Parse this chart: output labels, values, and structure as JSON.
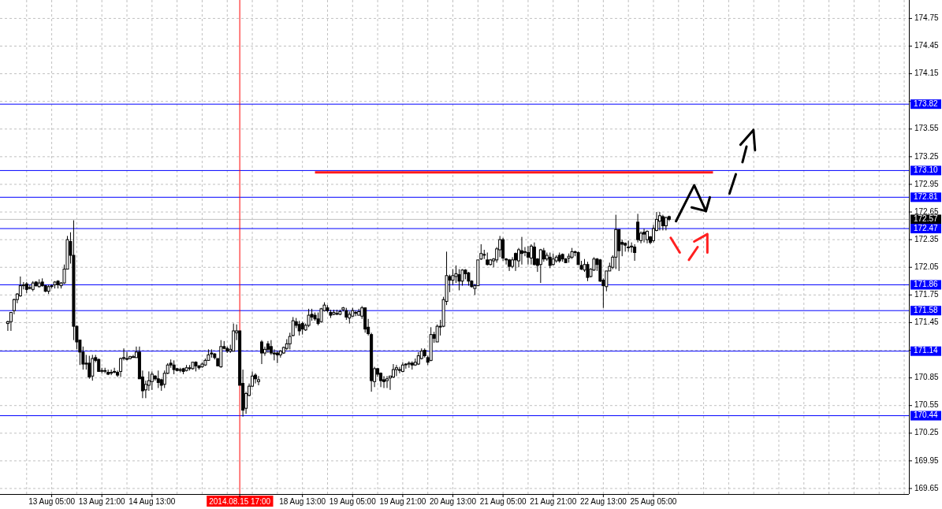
{
  "chart_data": {
    "type": "candlestick",
    "categories": [
      null,
      null,
      null,
      null,
      null,
      null,
      null,
      null,
      null,
      null,
      null,
      null,
      null,
      null,
      null,
      null,
      "13 Aug 05:00",
      null,
      null,
      null,
      null,
      null,
      null,
      null,
      null,
      null,
      null,
      null,
      null,
      null,
      null,
      null,
      "13 Aug 21:00",
      null,
      null,
      null,
      null,
      null,
      null,
      null,
      null,
      null,
      null,
      null,
      null,
      null,
      null,
      null,
      "14 Aug 13:00",
      null,
      null,
      null,
      null,
      null,
      null,
      null,
      null,
      null,
      null,
      null,
      null,
      null,
      null,
      null,
      null,
      null,
      null,
      null,
      null,
      null,
      null,
      null,
      null,
      null,
      null,
      null,
      "2014.08.15 17:00",
      null,
      null,
      null,
      null,
      null,
      null,
      null,
      null,
      null,
      null,
      null,
      null,
      null,
      null,
      null,
      null,
      null,
      null,
      null,
      "18 Aug 13:00",
      null,
      null,
      null,
      null,
      null,
      null,
      null,
      null,
      null,
      null,
      null,
      null,
      null,
      null,
      null,
      "19 Aug 05:00",
      null,
      null,
      null,
      null,
      null,
      null,
      null,
      null,
      null,
      null,
      null,
      null,
      null,
      null,
      null,
      "19 Aug 21:00",
      null,
      null,
      null,
      null,
      null,
      null,
      null,
      null,
      null,
      null,
      null,
      null,
      null,
      null,
      null,
      "20 Aug 13:00",
      null,
      null,
      null,
      null,
      null,
      null,
      null,
      null,
      null,
      null,
      null,
      null,
      null,
      null,
      null,
      "21 Aug 05:00",
      null,
      null,
      null,
      null,
      null,
      null,
      null,
      null,
      null,
      null,
      null,
      null,
      null,
      null,
      null,
      "21 Aug 21:00",
      null,
      null,
      null,
      null,
      null,
      null,
      null,
      null,
      null,
      null,
      null,
      null,
      null,
      null,
      null,
      "22 Aug 13:00",
      null,
      null,
      null,
      null,
      null,
      null,
      null,
      null,
      null,
      null,
      null,
      null,
      null,
      null,
      null,
      "25 Aug 05:00",
      null,
      null,
      null,
      null,
      null,
      null,
      null,
      null,
      null,
      null,
      null,
      null,
      null,
      null,
      null,
      null,
      null,
      null,
      null,
      null,
      null,
      null,
      null,
      null,
      null,
      null,
      null,
      null,
      null,
      null,
      null,
      null,
      null,
      null,
      null,
      null,
      null,
      null,
      null,
      null,
      null,
      null,
      null,
      null,
      null,
      null,
      null,
      null,
      null,
      null,
      null,
      null,
      null,
      null,
      null,
      null,
      null,
      null,
      null,
      null,
      null,
      null,
      null,
      null,
      null,
      null,
      null,
      null,
      null,
      null,
      null,
      null,
      null,
      null,
      null,
      null,
      null,
      null,
      null,
      null,
      null
    ],
    "ohlc": [
      null,
      null,
      [
        171.44,
        171.47,
        171.36,
        171.46
      ],
      [
        171.46,
        171.56,
        171.36,
        171.56
      ],
      [
        171.58,
        171.71,
        171.54,
        171.7
      ],
      [
        171.7,
        171.77,
        171.66,
        171.76
      ],
      [
        171.74,
        171.95,
        171.73,
        171.85
      ],
      [
        171.85,
        171.89,
        171.81,
        171.86
      ],
      [
        171.87,
        171.89,
        171.77,
        171.81
      ],
      [
        171.83,
        171.86,
        171.81,
        171.83
      ],
      [
        171.81,
        171.9,
        171.79,
        171.88
      ],
      [
        171.89,
        171.9,
        171.84,
        171.85
      ],
      [
        171.84,
        171.92,
        171.83,
        171.88
      ],
      [
        171.89,
        171.93,
        171.84,
        171.85
      ],
      [
        171.85,
        171.86,
        171.78,
        171.79
      ],
      [
        171.79,
        171.86,
        171.76,
        171.84
      ],
      [
        171.85,
        171.86,
        171.82,
        171.85
      ],
      [
        171.86,
        171.9,
        171.82,
        171.89
      ],
      [
        171.9,
        171.91,
        171.82,
        171.86
      ],
      [
        171.85,
        171.89,
        171.82,
        171.88
      ],
      [
        171.88,
        172.08,
        171.87,
        172.03
      ],
      [
        172.03,
        172.39,
        172.03,
        172.35
      ],
      [
        172.33,
        172.43,
        172.09,
        172.18
      ],
      [
        172.18,
        172.56,
        171.26,
        171.41
      ],
      [
        171.41,
        171.42,
        171.16,
        171.24
      ],
      [
        171.26,
        171.26,
        170.99,
        171.13
      ],
      [
        171.13,
        171.19,
        170.94,
        171.0
      ],
      [
        171.01,
        171.1,
        170.94,
        171.0
      ],
      [
        171.01,
        171.09,
        170.84,
        170.86
      ],
      [
        170.87,
        171.1,
        170.82,
        171.06
      ],
      [
        171.07,
        171.1,
        171.02,
        171.04
      ],
      [
        171.05,
        171.06,
        170.92,
        170.92
      ],
      [
        170.93,
        170.96,
        170.9,
        170.93
      ],
      [
        170.93,
        170.96,
        170.9,
        170.93
      ],
      [
        170.91,
        170.94,
        170.88,
        170.89
      ],
      [
        170.91,
        170.94,
        170.88,
        170.91
      ],
      [
        170.92,
        170.96,
        170.9,
        170.92
      ],
      [
        170.91,
        170.93,
        170.86,
        170.88
      ],
      [
        170.92,
        171.07,
        170.86,
        171.06
      ],
      [
        171.07,
        171.17,
        171.04,
        171.07
      ],
      [
        171.06,
        171.13,
        171.04,
        171.06
      ],
      [
        171.06,
        171.09,
        171.05,
        171.08
      ],
      [
        171.08,
        171.1,
        171.07,
        171.08
      ],
      [
        171.07,
        171.19,
        171.07,
        171.13
      ],
      [
        171.13,
        171.19,
        170.84,
        170.84
      ],
      [
        170.86,
        170.93,
        170.63,
        170.71
      ],
      [
        170.72,
        170.82,
        170.63,
        170.78
      ],
      [
        170.77,
        170.92,
        170.71,
        170.82
      ],
      [
        170.81,
        170.92,
        170.72,
        170.89
      ],
      [
        170.87,
        170.88,
        170.82,
        170.84
      ],
      [
        170.84,
        170.93,
        170.74,
        170.8
      ],
      [
        170.83,
        170.84,
        170.71,
        170.77
      ],
      [
        170.78,
        170.93,
        170.74,
        170.9
      ],
      [
        170.9,
        171.01,
        170.89,
        170.99
      ],
      [
        171.01,
        171.05,
        170.96,
        170.99
      ],
      [
        170.99,
        171.04,
        170.89,
        170.94
      ],
      [
        170.95,
        170.96,
        170.92,
        170.93
      ],
      [
        170.94,
        170.96,
        170.91,
        170.94
      ],
      [
        170.95,
        170.96,
        170.89,
        170.92
      ],
      [
        170.93,
        170.99,
        170.92,
        170.96
      ],
      [
        170.96,
        170.99,
        170.93,
        170.96
      ],
      [
        170.95,
        171.02,
        170.94,
        171.02
      ],
      [
        171.02,
        171.03,
        170.92,
        170.98
      ],
      [
        170.98,
        170.99,
        170.94,
        170.96
      ],
      [
        170.97,
        171.02,
        170.96,
        171.0
      ],
      [
        170.99,
        171.06,
        170.98,
        171.04
      ],
      [
        171.04,
        171.16,
        171.04,
        171.1
      ],
      [
        171.12,
        171.16,
        171.07,
        171.11
      ],
      [
        171.11,
        171.12,
        171.05,
        171.07
      ],
      [
        171.06,
        171.06,
        170.98,
        170.98
      ],
      [
        170.97,
        171.26,
        170.96,
        171.19
      ],
      [
        171.19,
        171.25,
        171.16,
        171.17
      ],
      [
        171.17,
        171.19,
        171.12,
        171.14
      ],
      [
        171.14,
        171.21,
        171.12,
        171.16
      ],
      [
        171.14,
        171.44,
        171.14,
        171.36
      ],
      [
        171.34,
        171.43,
        171.26,
        171.36
      ],
      [
        171.36,
        171.36,
        170.77,
        170.77
      ],
      [
        170.79,
        170.94,
        170.43,
        170.5
      ],
      [
        170.52,
        170.7,
        170.46,
        170.68
      ],
      [
        170.66,
        170.79,
        170.65,
        170.76
      ],
      [
        170.76,
        170.92,
        170.75,
        170.87
      ],
      [
        170.88,
        170.9,
        170.79,
        170.84
      ],
      [
        170.81,
        170.87,
        170.77,
        170.83
      ],
      [
        171.24,
        171.26,
        171.0,
        171.12
      ],
      [
        171.12,
        171.19,
        171.09,
        171.16
      ],
      [
        171.22,
        171.25,
        171.12,
        171.16
      ],
      [
        171.19,
        171.26,
        171.1,
        171.12
      ],
      [
        171.12,
        171.16,
        171.04,
        171.11
      ],
      [
        171.12,
        171.14,
        171.01,
        171.1
      ],
      [
        171.1,
        171.15,
        171.07,
        171.14
      ],
      [
        171.12,
        171.19,
        171.11,
        171.18
      ],
      [
        171.17,
        171.27,
        171.15,
        171.22
      ],
      [
        171.22,
        171.34,
        171.16,
        171.3
      ],
      [
        171.31,
        171.51,
        171.3,
        171.47
      ],
      [
        171.46,
        171.5,
        171.39,
        171.42
      ],
      [
        171.43,
        171.47,
        171.31,
        171.36
      ],
      [
        171.44,
        171.46,
        171.32,
        171.38
      ],
      [
        171.37,
        171.44,
        171.36,
        171.42
      ],
      [
        171.42,
        171.6,
        171.4,
        171.53
      ],
      [
        171.54,
        171.6,
        171.47,
        171.51
      ],
      [
        171.53,
        171.56,
        171.47,
        171.49
      ],
      [
        171.49,
        171.56,
        171.42,
        171.44
      ],
      [
        171.46,
        171.61,
        171.45,
        171.6
      ],
      [
        171.58,
        171.67,
        171.57,
        171.64
      ],
      [
        171.61,
        171.64,
        171.56,
        171.58
      ],
      [
        171.56,
        171.59,
        171.5,
        171.53
      ],
      [
        171.54,
        171.59,
        171.53,
        171.56
      ],
      [
        171.55,
        171.59,
        171.53,
        171.55
      ],
      [
        171.54,
        171.59,
        171.53,
        171.57
      ],
      [
        171.59,
        171.62,
        171.57,
        171.61
      ],
      [
        171.58,
        171.61,
        171.48,
        171.51
      ],
      [
        171.5,
        171.57,
        171.44,
        171.54
      ],
      [
        171.52,
        171.61,
        171.51,
        171.58
      ],
      [
        171.56,
        171.58,
        171.52,
        171.56
      ],
      [
        171.53,
        171.6,
        171.53,
        171.57
      ],
      [
        171.52,
        171.63,
        171.49,
        171.61
      ],
      [
        171.61,
        171.61,
        171.34,
        171.38
      ],
      [
        171.4,
        171.49,
        171.31,
        171.33
      ],
      [
        171.32,
        171.34,
        170.7,
        170.82
      ],
      [
        170.81,
        170.97,
        170.75,
        170.95
      ],
      [
        170.95,
        170.96,
        170.86,
        170.89
      ],
      [
        170.9,
        170.91,
        170.75,
        170.82
      ],
      [
        170.83,
        170.87,
        170.74,
        170.81
      ],
      [
        170.82,
        170.87,
        170.74,
        170.84
      ],
      [
        170.85,
        170.87,
        170.72,
        170.87
      ],
      [
        170.86,
        171.0,
        170.85,
        170.94
      ],
      [
        170.94,
        170.99,
        170.87,
        170.96
      ],
      [
        170.94,
        170.97,
        170.9,
        170.94
      ],
      [
        170.92,
        171.02,
        170.91,
        170.99
      ],
      [
        171.0,
        171.01,
        170.95,
        171.0
      ],
      [
        171.0,
        171.03,
        170.96,
        171.01
      ],
      [
        171.01,
        171.03,
        170.94,
        170.99
      ],
      [
        170.99,
        171.06,
        170.98,
        171.02
      ],
      [
        171.0,
        171.13,
        170.99,
        171.09
      ],
      [
        171.06,
        171.17,
        171.05,
        171.14
      ],
      [
        171.15,
        171.17,
        171.07,
        171.09
      ],
      [
        171.07,
        171.09,
        170.99,
        171.02
      ],
      [
        171.04,
        171.4,
        171.03,
        171.32
      ],
      [
        171.32,
        171.35,
        171.23,
        171.28
      ],
      [
        171.24,
        171.43,
        171.24,
        171.41
      ],
      [
        171.41,
        171.48,
        171.31,
        171.41
      ],
      [
        171.41,
        171.73,
        171.4,
        171.7
      ],
      [
        171.68,
        172.22,
        171.64,
        171.96
      ],
      [
        171.95,
        171.97,
        171.78,
        171.91
      ],
      [
        171.91,
        172.03,
        171.86,
        171.96
      ],
      [
        171.95,
        172.07,
        171.88,
        171.98
      ],
      [
        171.97,
        172.03,
        171.8,
        171.9
      ],
      [
        171.9,
        172.03,
        171.85,
        172.02
      ],
      [
        172.02,
        172.03,
        171.92,
        171.98
      ],
      [
        171.99,
        172.0,
        171.85,
        171.9
      ],
      [
        171.9,
        171.91,
        171.83,
        171.84
      ],
      [
        171.82,
        171.87,
        171.75,
        171.85
      ],
      [
        171.85,
        172.13,
        171.85,
        172.13
      ],
      [
        172.14,
        172.3,
        172.13,
        172.2
      ],
      [
        172.19,
        172.24,
        172.14,
        172.19
      ],
      [
        172.13,
        172.21,
        172.07,
        172.08
      ],
      [
        172.08,
        172.14,
        172.07,
        172.13
      ],
      [
        172.12,
        172.15,
        172.05,
        172.14
      ],
      [
        172.13,
        172.27,
        172.1,
        172.25
      ],
      [
        172.24,
        172.39,
        172.16,
        172.35
      ],
      [
        172.35,
        172.37,
        172.12,
        172.15
      ],
      [
        172.14,
        172.15,
        172.08,
        172.13
      ],
      [
        172.13,
        172.14,
        172.01,
        172.06
      ],
      [
        172.06,
        172.16,
        172.04,
        172.13
      ],
      [
        172.2,
        172.21,
        172.01,
        172.13
      ],
      [
        172.12,
        172.26,
        172.05,
        172.24
      ],
      [
        172.23,
        172.38,
        172.08,
        172.2
      ],
      [
        172.22,
        172.27,
        172.17,
        172.22
      ],
      [
        172.21,
        172.28,
        172.08,
        172.16
      ],
      [
        172.15,
        172.3,
        172.08,
        172.28
      ],
      [
        172.27,
        172.32,
        172.07,
        172.08
      ],
      [
        172.14,
        172.15,
        172.0,
        172.07
      ],
      [
        172.08,
        172.25,
        171.88,
        172.24
      ],
      [
        172.23,
        172.26,
        172.11,
        172.14
      ],
      [
        172.14,
        172.21,
        172.12,
        172.18
      ],
      [
        172.16,
        172.21,
        172.04,
        172.07
      ],
      [
        172.08,
        172.2,
        172.07,
        172.14
      ],
      [
        172.12,
        172.18,
        172.1,
        172.16
      ],
      [
        172.18,
        172.21,
        172.1,
        172.12
      ],
      [
        172.19,
        172.2,
        172.11,
        172.14
      ],
      [
        172.14,
        172.15,
        172.1,
        172.1
      ],
      [
        172.15,
        172.2,
        172.1,
        172.17
      ],
      [
        172.16,
        172.26,
        172.14,
        172.22
      ],
      [
        172.22,
        172.23,
        172.17,
        172.21
      ],
      [
        172.21,
        172.22,
        172.08,
        172.08
      ],
      [
        172.07,
        172.12,
        172.02,
        172.03
      ],
      [
        172.02,
        172.14,
        172.0,
        172.08
      ],
      [
        172.08,
        172.11,
        171.9,
        171.94
      ],
      [
        171.95,
        172.04,
        171.94,
        172.03
      ],
      [
        172.02,
        172.16,
        172.01,
        172.14
      ],
      [
        172.14,
        172.15,
        172.01,
        172.08
      ],
      [
        172.13,
        172.14,
        171.89,
        171.9
      ],
      [
        171.91,
        171.93,
        171.61,
        171.85
      ],
      [
        171.84,
        172.01,
        171.79,
        172.01
      ],
      [
        172.01,
        172.1,
        172.01,
        172.06
      ],
      [
        172.05,
        172.18,
        172.03,
        172.16
      ],
      [
        172.16,
        172.62,
        172.03,
        172.46
      ],
      [
        172.46,
        172.46,
        172.01,
        172.23
      ],
      [
        172.32,
        172.35,
        172.17,
        172.3
      ],
      [
        172.31,
        172.32,
        172.22,
        172.29
      ],
      [
        172.27,
        172.34,
        172.22,
        172.27
      ],
      [
        172.27,
        172.32,
        172.21,
        172.28
      ],
      [
        172.27,
        172.3,
        172.12,
        172.21
      ],
      [
        172.54,
        172.63,
        172.32,
        172.35
      ],
      [
        172.34,
        172.44,
        172.31,
        172.42
      ],
      [
        172.43,
        172.47,
        172.32,
        172.41
      ],
      [
        172.35,
        172.45,
        172.31,
        172.44
      ],
      [
        172.38,
        172.39,
        172.3,
        172.32
      ],
      [
        172.34,
        172.51,
        172.32,
        172.47
      ],
      [
        172.45,
        172.65,
        172.44,
        172.57
      ],
      [
        172.55,
        172.65,
        172.45,
        172.61
      ],
      [
        172.6,
        172.62,
        172.45,
        172.5
      ],
      [
        172.5,
        172.6,
        172.45,
        172.59
      ],
      [
        172.6,
        172.61,
        172.55,
        172.57
      ],
      null,
      null,
      null,
      null,
      null,
      null,
      null,
      null,
      null,
      null,
      null,
      null,
      null,
      null,
      null,
      null,
      null,
      null,
      null,
      null,
      null,
      null,
      null,
      null,
      null,
      null,
      null,
      null,
      null,
      null,
      null,
      null,
      null,
      null,
      null,
      null,
      null,
      null,
      null,
      null,
      null,
      null,
      null,
      null,
      null,
      null,
      null,
      null,
      null,
      null,
      null,
      null,
      null,
      null,
      null,
      null,
      null,
      null,
      null,
      null,
      null,
      null,
      null,
      null,
      null,
      null,
      null,
      null,
      null,
      null,
      null,
      null,
      null,
      null,
      null,
      null
    ],
    "series": [
      {
        "type": "line",
        "color": "#ff1a1a",
        "values": [
          null,
          null,
          null,
          null,
          null,
          null,
          null,
          null,
          null,
          null,
          null,
          null,
          null,
          null,
          null,
          null,
          null,
          null,
          null,
          null,
          null,
          null,
          null,
          null,
          null,
          null,
          null,
          null,
          null,
          null,
          null,
          null,
          null,
          null,
          null,
          null,
          null,
          null,
          null,
          null,
          null,
          null,
          null,
          null,
          null,
          null,
          null,
          null,
          null,
          null,
          null,
          null,
          null,
          null,
          null,
          null,
          null,
          null,
          null,
          null,
          null,
          null,
          null,
          null,
          null,
          null,
          null,
          null,
          null,
          null,
          null,
          null,
          null,
          null,
          null,
          null,
          null,
          null,
          null,
          null,
          null,
          null,
          null,
          null,
          null,
          null,
          null,
          null,
          null,
          null,
          null,
          null,
          null,
          null,
          null,
          null,
          null,
          null,
          null,
          null,
          173.08,
          173.08,
          173.08,
          173.08,
          173.08,
          173.08,
          173.08,
          173.08,
          173.08,
          173.08,
          173.08,
          173.08,
          173.08,
          173.08,
          173.08,
          173.08,
          173.08,
          173.08,
          173.08,
          173.08,
          173.08,
          173.08,
          173.08,
          173.08,
          173.08,
          173.08,
          173.08,
          173.08,
          173.08,
          173.08,
          173.08,
          173.08,
          173.08,
          173.08,
          173.08,
          173.08,
          173.08,
          173.08,
          173.08,
          173.08,
          173.08,
          173.08,
          173.08,
          173.08,
          173.08,
          173.08,
          173.08,
          173.08,
          173.08,
          173.08,
          173.08,
          173.08,
          173.08,
          173.08,
          173.08,
          173.08,
          173.08,
          173.08,
          173.08,
          173.08,
          173.08,
          173.08,
          173.08,
          173.08,
          173.08,
          173.08,
          173.08,
          173.08,
          173.08,
          173.08,
          173.08,
          173.08,
          173.08,
          173.08,
          173.08,
          173.08,
          173.08,
          173.08,
          173.08,
          173.08,
          173.08,
          173.08,
          173.08,
          173.08,
          173.08,
          173.08,
          173.08,
          173.08,
          173.08,
          173.08,
          173.08,
          173.08,
          173.08,
          173.08,
          173.08,
          173.08,
          173.08,
          173.08,
          173.08,
          173.08,
          173.08,
          173.08,
          173.08,
          173.08,
          173.08,
          173.08,
          173.08,
          173.08,
          173.08,
          173.08,
          173.08,
          173.08,
          173.08,
          173.08,
          173.08,
          173.08,
          173.08,
          173.08,
          173.08,
          173.08,
          173.08,
          173.08,
          173.08,
          173.08,
          173.08,
          173.08,
          173.08,
          173.08,
          null,
          null,
          null,
          null,
          null,
          null,
          null,
          null,
          null,
          null,
          null,
          null,
          null,
          null,
          null,
          null,
          null,
          null,
          null,
          null,
          null,
          null,
          null,
          null,
          null,
          null,
          null,
          null,
          null,
          null,
          null,
          null,
          null,
          null,
          null,
          null,
          null,
          null,
          null,
          null,
          null,
          null,
          null,
          null,
          null,
          null,
          null,
          null,
          null,
          null,
          null,
          null,
          null,
          null,
          null,
          null,
          null,
          null,
          null,
          null,
          null,
          null
        ]
      }
    ],
    "ylim": [
      169.59,
      174.95
    ],
    "yticks": [
      169.65,
      169.95,
      170.25,
      170.55,
      170.85,
      {
        "value": 171.15,
        "label": null
      },
      171.45,
      171.75,
      172.05,
      172.35,
      172.65,
      172.95,
      173.25,
      173.55,
      {
        "value": 173.85,
        "label": null
      },
      174.15,
      174.45,
      174.75
    ],
    "grid": true,
    "ref_lines": [
      {
        "axis": "y",
        "value": 173.82,
        "label": "173.82",
        "color": "#0000ff"
      },
      {
        "axis": "y",
        "value": 173.1,
        "label": "173.10",
        "color": "#0000ff"
      },
      {
        "axis": "y",
        "value": 172.81,
        "label": "172.81",
        "color": "#0000ff"
      },
      {
        "axis": "y",
        "value": 172.57,
        "label": "172.57",
        "color": "#c0c0c0"
      },
      {
        "axis": "y",
        "value": 172.47,
        "label": "172.47",
        "color": "#0000ff"
      },
      {
        "axis": "y",
        "value": 171.86,
        "label": "171.86",
        "color": "#0000ff"
      },
      {
        "axis": "y",
        "value": 171.58,
        "label": "171.58",
        "color": "#0000ff"
      },
      {
        "axis": "y",
        "value": 171.14,
        "label": "171.14",
        "color": "#0000ff"
      },
      {
        "axis": "y",
        "value": 170.44,
        "label": "170.44",
        "color": "#0000ff"
      },
      {
        "axis": "x",
        "value": "2014.08.15 17:00",
        "color": "#ff0000"
      }
    ]
  }
}
